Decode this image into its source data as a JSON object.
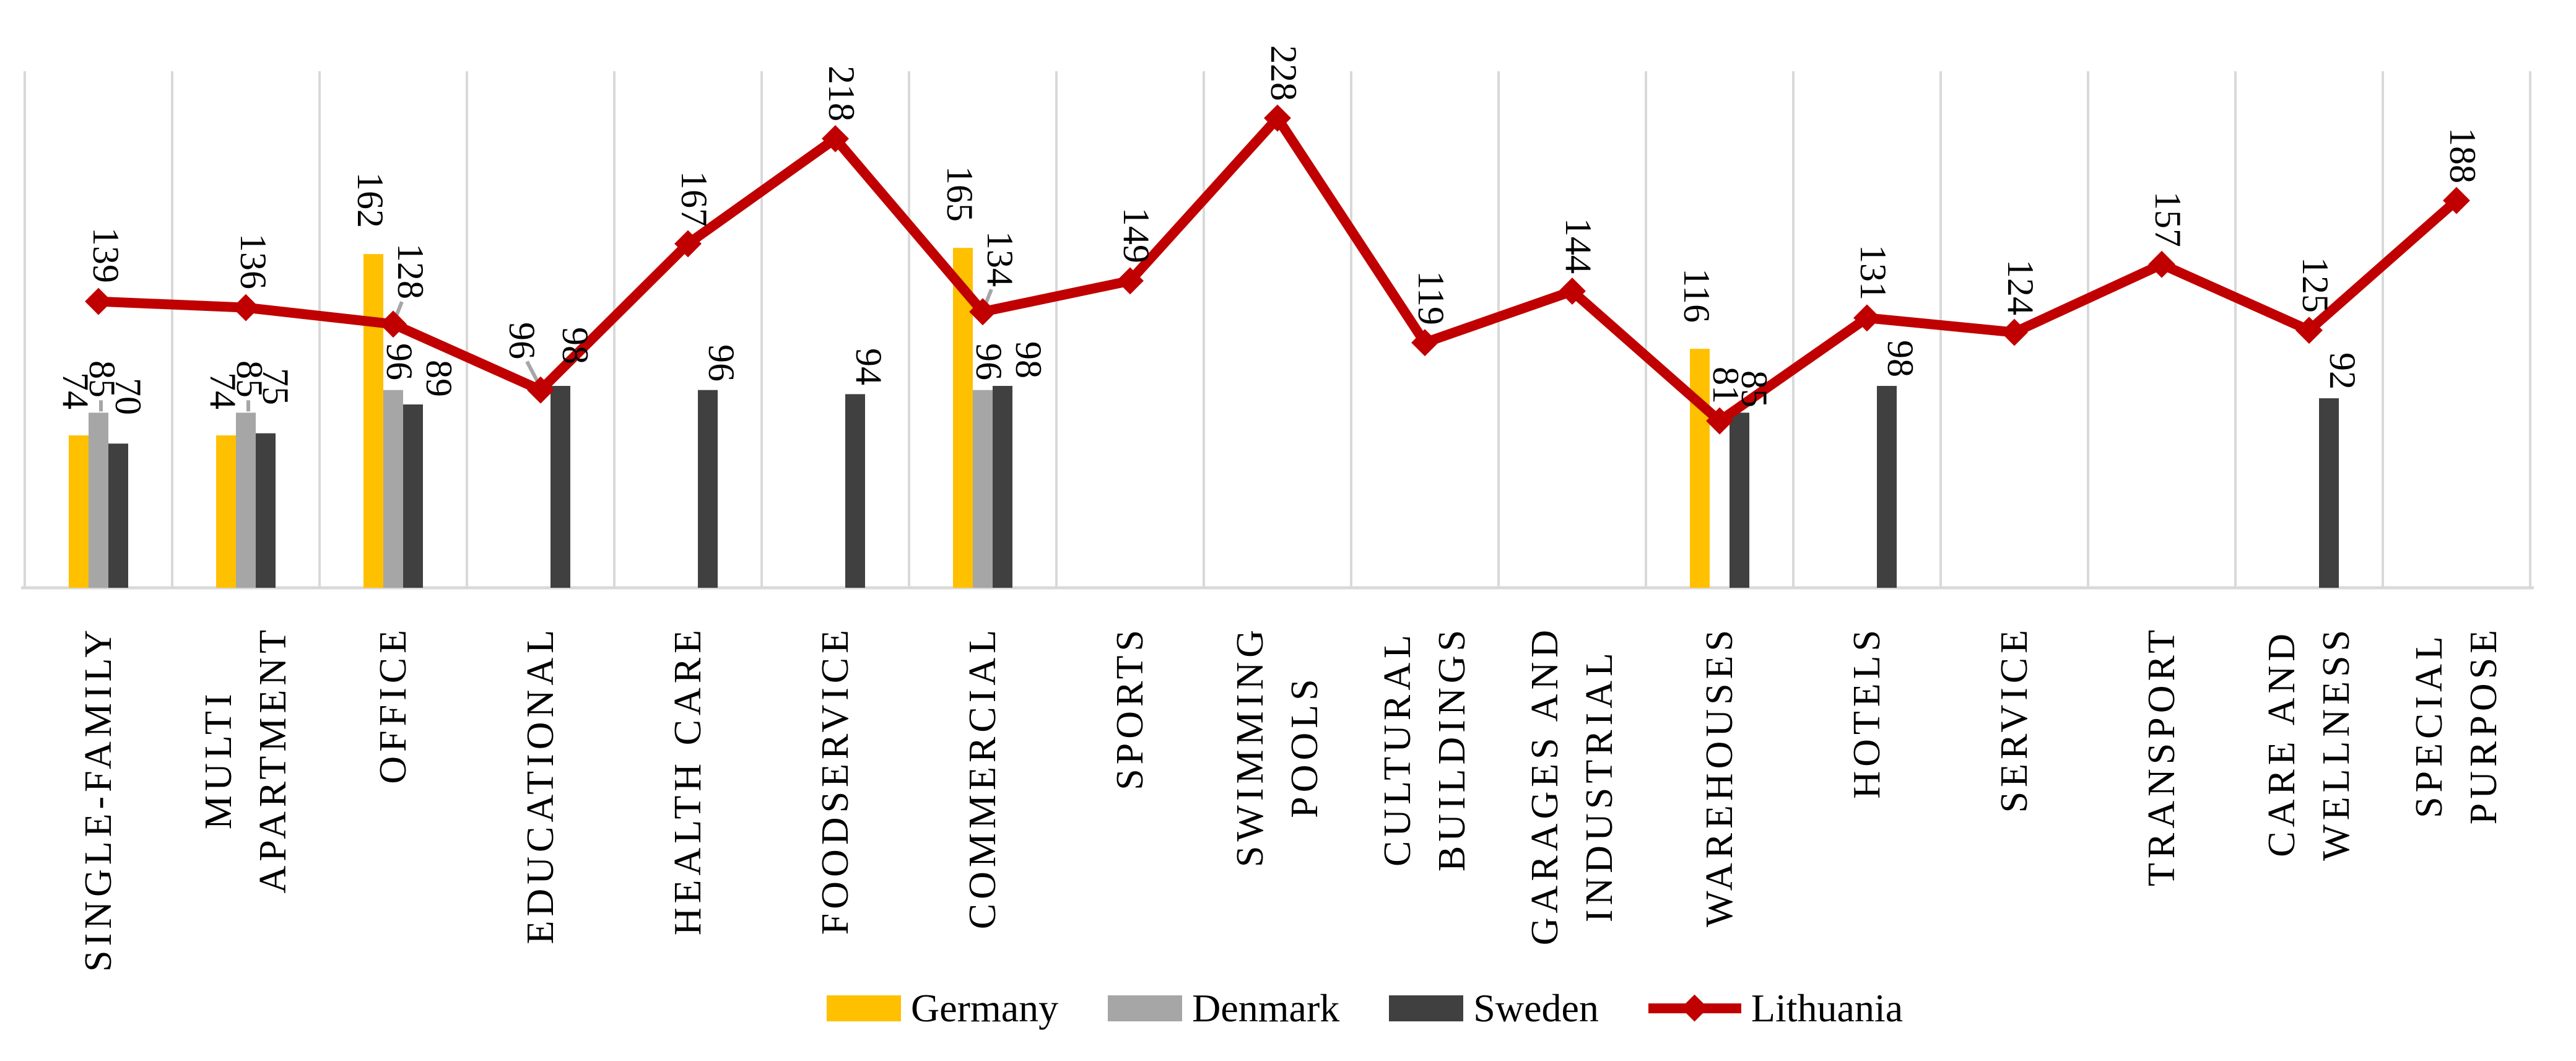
{
  "chart_data": {
    "type": "bar",
    "subtype": "clustered-bars-with-line-overlay",
    "title": "",
    "xlabel": "",
    "ylabel": "",
    "ylim": [
      0,
      255
    ],
    "grid": "vertical category separators only, no horizontal gridlines, no y-axis labels",
    "legend_position": "bottom-center",
    "data_labels_shown": true,
    "categories": [
      "SINGLE-FAMILY",
      "MULTI\nAPARTMENT",
      "OFFICE",
      "EDUCATIONAL",
      "HEALTH CARE",
      "FOODSERVICE",
      "COMMERCIAL",
      "SPORTS",
      "SWIMMING\nPOOLS",
      "CULTURAL\nBUILDINGS",
      "GARAGES AND\nINDUSTRIAL",
      "WAREHOUSES",
      "HOTELS",
      "SERVICE",
      "TRANSPORT",
      "CARE AND\nWELLNESS",
      "SPECIAL\nPURPOSE"
    ],
    "series": [
      {
        "name": "Germany",
        "type": "bar",
        "color": "#FFC000",
        "values": [
          74,
          74,
          162,
          null,
          null,
          null,
          165,
          null,
          null,
          null,
          null,
          116,
          null,
          null,
          null,
          null,
          null
        ]
      },
      {
        "name": "Denmark",
        "type": "bar",
        "color": "#A6A6A6",
        "values": [
          85,
          85,
          96,
          null,
          null,
          null,
          96,
          null,
          null,
          null,
          null,
          null,
          null,
          null,
          null,
          null,
          null
        ]
      },
      {
        "name": "Sweden",
        "type": "bar",
        "color": "#404040",
        "values": [
          70,
          75,
          89,
          98,
          96,
          94,
          98,
          null,
          null,
          null,
          null,
          85,
          98,
          null,
          null,
          92,
          null
        ]
      },
      {
        "name": "Lithuania",
        "type": "line",
        "color": "#C00000",
        "marker": "diamond",
        "values": [
          139,
          136,
          128,
          96,
          167,
          218,
          134,
          149,
          228,
          119,
          144,
          81,
          131,
          124,
          157,
          125,
          188
        ]
      }
    ]
  },
  "legend": {
    "items": [
      {
        "label": "Germany",
        "key": "bar-swatch",
        "color": "#FFC000"
      },
      {
        "label": "Denmark",
        "key": "bar-swatch",
        "color": "#A6A6A6"
      },
      {
        "label": "Sweden",
        "key": "bar-swatch",
        "color": "#404040"
      },
      {
        "label": "Lithuania",
        "key": "line-diamond",
        "color": "#C00000"
      }
    ]
  },
  "colors": {
    "gridline": "#D9D9D9",
    "axis_line": "#D9D9D9",
    "leader_line": "#A6A6A6",
    "label_text": "#000000",
    "background": "#FFFFFF"
  }
}
